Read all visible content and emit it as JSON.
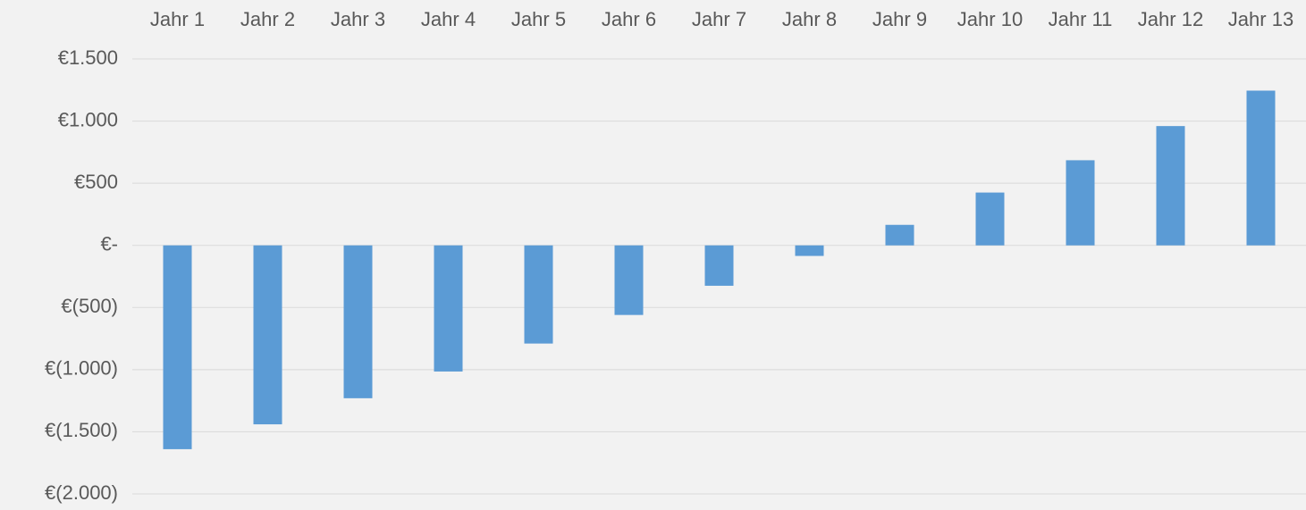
{
  "chart_data": {
    "type": "bar",
    "categories": [
      "Jahr 1",
      "Jahr 2",
      "Jahr 3",
      "Jahr 4",
      "Jahr 5",
      "Jahr 6",
      "Jahr 7",
      "Jahr 8",
      "Jahr 9",
      "Jahr 10",
      "Jahr 11",
      "Jahr 12",
      "Jahr 13"
    ],
    "values": [
      -1640,
      -1440,
      -1230,
      -1015,
      -790,
      -560,
      -325,
      -85,
      165,
      425,
      685,
      960,
      1245
    ],
    "color": "#5b9bd5",
    "ylim": [
      -2000,
      1500
    ],
    "yticks": [
      {
        "value": -2000,
        "label": "€(2.000)"
      },
      {
        "value": -1500,
        "label": "€(1.500)"
      },
      {
        "value": -1000,
        "label": "€(1.000)"
      },
      {
        "value": -500,
        "label": "€(500)"
      },
      {
        "value": 0,
        "label": "€-"
      },
      {
        "value": 500,
        "label": "€500"
      },
      {
        "value": 1000,
        "label": "€1.000"
      },
      {
        "value": 1500,
        "label": "€1.500"
      }
    ],
    "grid": true
  }
}
